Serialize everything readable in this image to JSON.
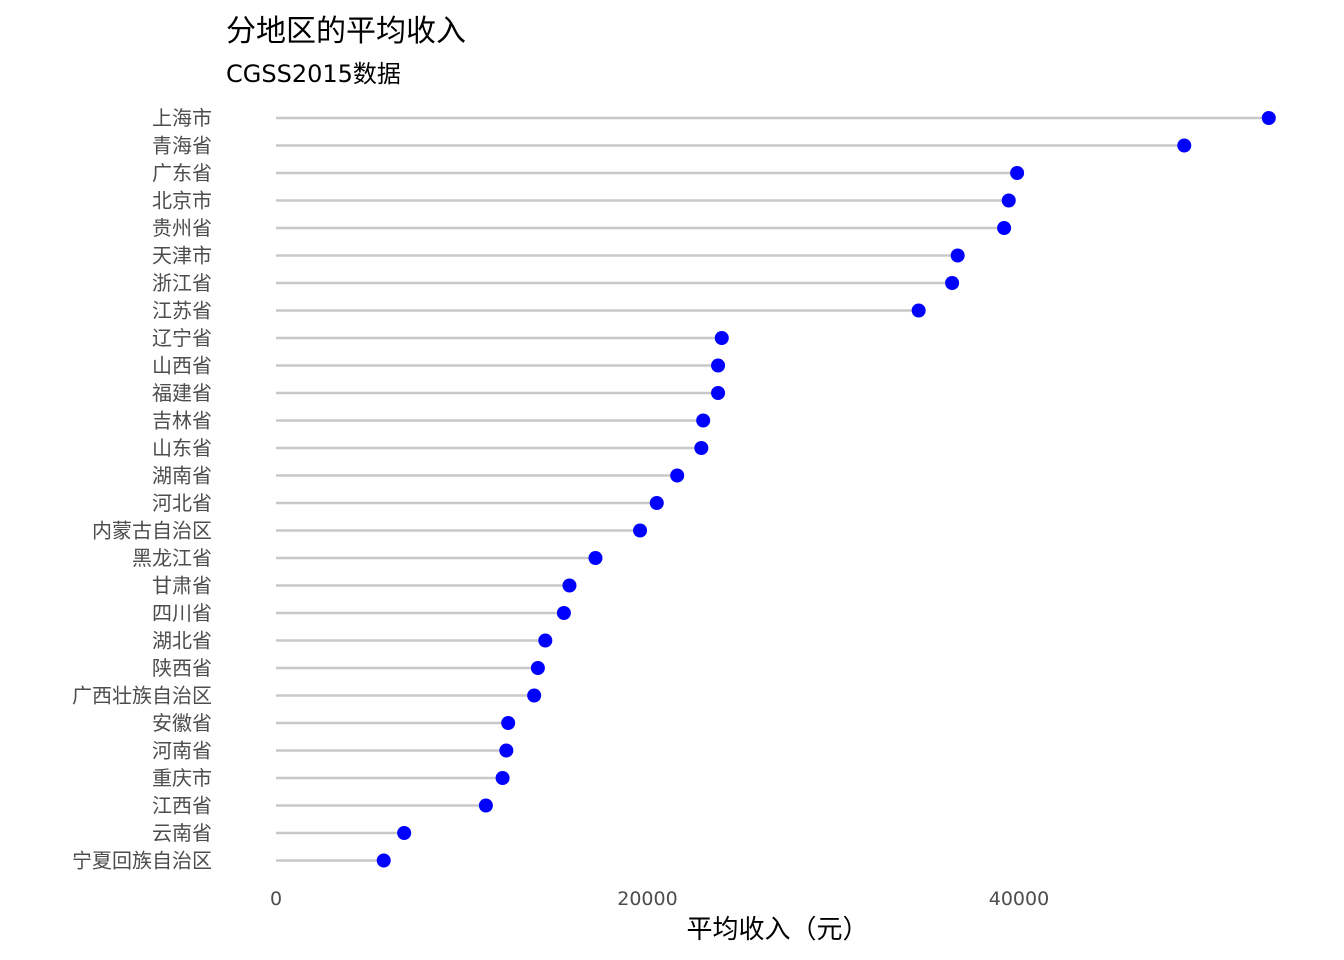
{
  "chart_data": {
    "type": "lollipop",
    "title": "分地区的平均收入",
    "subtitle": "CGSS2015数据",
    "xlabel": "平均收入（元）",
    "ylabel": "",
    "xlim": [
      0,
      54000
    ],
    "x_ticks": [
      0,
      20000,
      40000
    ],
    "x_tick_labels": [
      "0",
      "20000",
      "40000"
    ],
    "grid": false,
    "colors": {
      "point": "#0000ff",
      "stem": "#c8c8c8"
    },
    "categories": [
      "上海市",
      "青海省",
      "广东省",
      "北京市",
      "贵州省",
      "天津市",
      "浙江省",
      "江苏省",
      "辽宁省",
      "山西省",
      "福建省",
      "吉林省",
      "山东省",
      "湖南省",
      "河北省",
      "内蒙古自治区",
      "黑龙江省",
      "甘肃省",
      "四川省",
      "湖北省",
      "陕西省",
      "广西壮族自治区",
      "安徽省",
      "河南省",
      "重庆市",
      "江西省",
      "云南省",
      "宁夏回族自治区"
    ],
    "values": [
      53450,
      48900,
      39900,
      39450,
      39200,
      36700,
      36400,
      34600,
      24000,
      23800,
      23800,
      23000,
      22900,
      21600,
      20500,
      19600,
      17200,
      15800,
      15500,
      14500,
      14100,
      13900,
      12500,
      12400,
      12200,
      11300,
      6900,
      5800
    ]
  }
}
